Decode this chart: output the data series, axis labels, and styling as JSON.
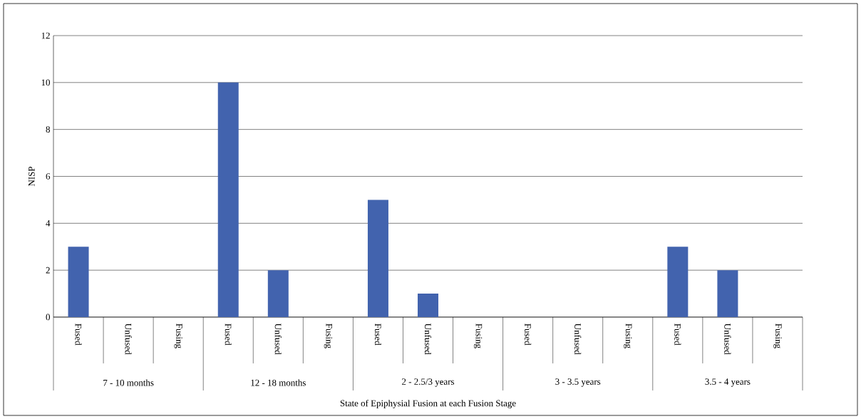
{
  "chart_data": {
    "type": "bar",
    "categories": [
      "Fused",
      "Unfused",
      "Fusing",
      "Fused",
      "Unfused",
      "Fusing",
      "Fused",
      "Unfused",
      "Fusing",
      "Fused",
      "Unfused",
      "Fusing",
      "Fused",
      "Unfused",
      "Fusing"
    ],
    "values": [
      3,
      0,
      0,
      10,
      2,
      0,
      5,
      1,
      0,
      0,
      0,
      0,
      3,
      2,
      0
    ],
    "color": "#4263ae",
    "ylim": [
      0,
      12
    ],
    "yticks": [
      0,
      2,
      4,
      6,
      8,
      10,
      12
    ],
    "grid": "y",
    "ylabel": "NISP",
    "xlabel": "State of Epiphysial Fusion at each Fusion Stage",
    "annotations": [
      "7 - 10 months",
      "12 - 18 months",
      "2 - 2.5/3 years",
      "3 - 3.5 years",
      "3.5 - 4 years"
    ]
  }
}
